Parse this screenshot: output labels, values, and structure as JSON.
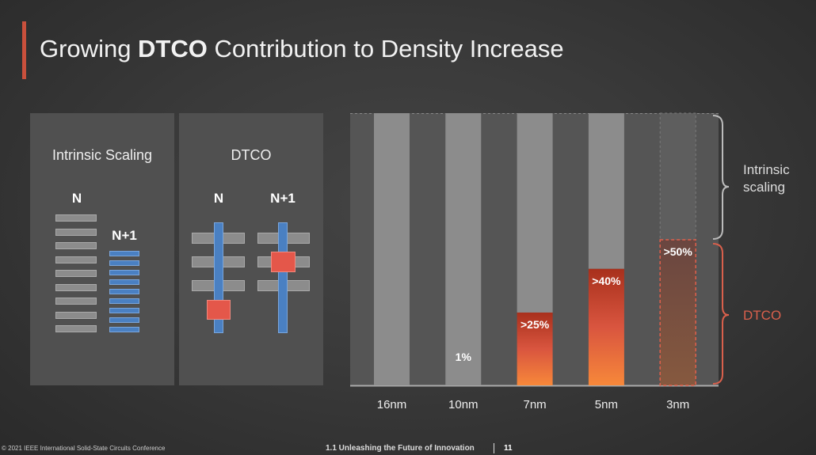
{
  "slide": {
    "title_pre": "Growing ",
    "title_bold": "DTCO",
    "title_post": " Contribution to Density Increase",
    "accent_color": "#c9503c"
  },
  "left_panels": [
    {
      "title": "Intrinsic Scaling",
      "label_n": "N",
      "label_n1": "N+1"
    },
    {
      "title": "DTCO",
      "label_n": "N",
      "label_n1": "N+1"
    }
  ],
  "chart_data": {
    "type": "bar",
    "stacked": true,
    "categories": [
      "16nm",
      "10nm",
      "7nm",
      "5nm",
      "3nm"
    ],
    "series": [
      {
        "name": "DTCO",
        "values": [
          0,
          1,
          25,
          40,
          50
        ],
        "labels": [
          "",
          "1%",
          ">25%",
          ">40%",
          ">50%"
        ],
        "color": "#e0553f"
      },
      {
        "name": "Intrinsic scaling",
        "values": [
          100,
          99,
          75,
          60,
          50
        ],
        "color": "#8c8c8c"
      }
    ],
    "projected_category": "3nm",
    "ylim": [
      0,
      100
    ],
    "legend": {
      "position": "right",
      "intrinsic_label": "Intrinsic scaling",
      "dtco_label": "DTCO",
      "dtco_color": "#d9604c"
    }
  },
  "footer": {
    "copyright": "© 2021 IEEE International Solid-State Circuits Conference",
    "session": "1.1 Unleashing the Future of Innovation",
    "page": "11"
  }
}
